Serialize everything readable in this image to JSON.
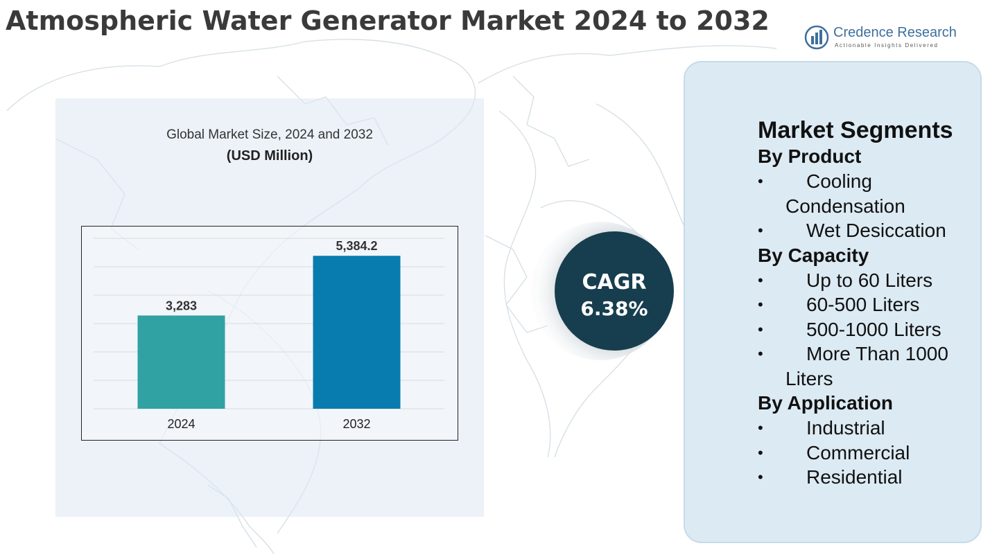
{
  "header": {
    "title": "Atmospheric Water Generator Market 2024 to 2032"
  },
  "brand": {
    "name": "Credence Research",
    "tagline": "Actionable Insights Delivered",
    "icon": "bar-chart-logo-icon",
    "color": "#3d6f9e"
  },
  "chart_data": {
    "type": "bar",
    "title": "Global Market Size, 2024 and 2032",
    "unit": "(USD Million)",
    "categories": [
      "2024",
      "2032"
    ],
    "values": [
      3283,
      5384.2
    ],
    "value_labels": [
      "3,283",
      "5,384.2"
    ],
    "colors": [
      "#31a2a3",
      "#087cae"
    ],
    "ylim": [
      0,
      6000
    ],
    "grid": true,
    "legend": false
  },
  "cagr": {
    "label": "CAGR",
    "value": "6.38%",
    "color": "#173e4e"
  },
  "segments": {
    "heading": "Market Segments",
    "groups": [
      {
        "title": "By Product",
        "items": [
          "Cooling Condensation",
          "Wet Desiccation"
        ]
      },
      {
        "title": "By Capacity",
        "items": [
          "Up to 60 Liters",
          "60-500 Liters",
          "500-1000 Liters",
          "More Than 1000 Liters"
        ]
      },
      {
        "title": "By Application",
        "items": [
          "Industrial",
          "Commercial",
          "Residential"
        ]
      }
    ]
  }
}
